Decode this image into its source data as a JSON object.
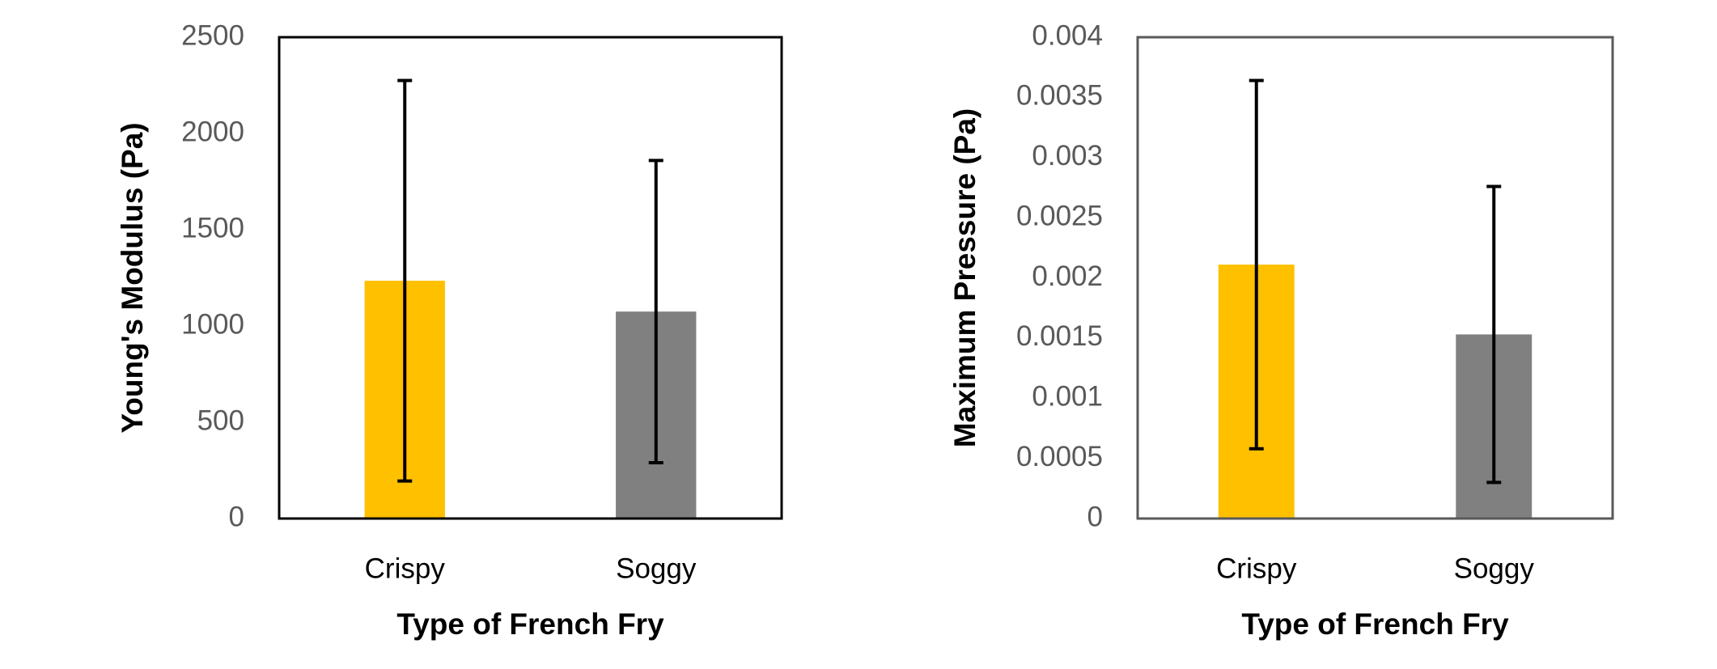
{
  "chart_data": [
    {
      "type": "bar",
      "categories": [
        "Crispy",
        "Soggy"
      ],
      "values": [
        1235,
        1075
      ],
      "errors": [
        1040,
        785
      ],
      "colors": [
        "#FFC000",
        "#808080"
      ],
      "ylim": [
        0,
        2500
      ],
      "yticks": [
        0,
        500,
        1000,
        1500,
        2000,
        2500
      ],
      "xlabel": "Type of French Fry",
      "ylabel": "Young's Modulus (Pa)",
      "frame_color": "#000000"
    },
    {
      "type": "bar",
      "categories": [
        "Crispy",
        "Soggy"
      ],
      "values": [
        0.00211,
        0.00153
      ],
      "errors": [
        0.00153,
        0.00123
      ],
      "colors": [
        "#FFC000",
        "#808080"
      ],
      "ylim": [
        0,
        0.004
      ],
      "yticks": [
        0,
        0.0005,
        0.001,
        0.0015,
        0.002,
        0.0025,
        0.003,
        0.0035,
        0.004
      ],
      "xlabel": "Type of French Fry",
      "ylabel": "Maximum Pressure (Pa)",
      "frame_color": "#595959"
    }
  ]
}
